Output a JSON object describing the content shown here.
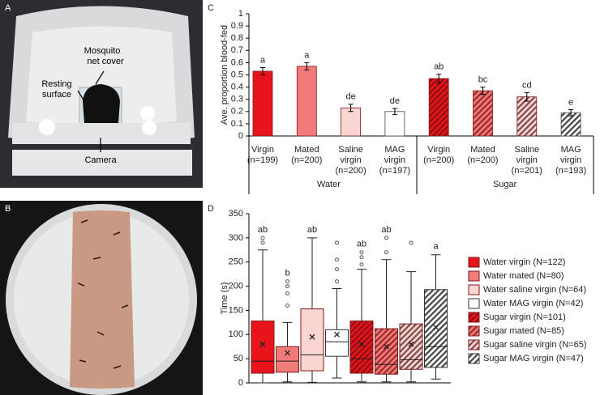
{
  "photo_a": {
    "panel_label": "A",
    "annotations": [
      [
        "Mosquito",
        "net cover"
      ],
      [
        "Resting",
        "surface"
      ],
      [
        "Camera"
      ]
    ]
  },
  "photo_b": {
    "panel_label": "B"
  },
  "chart_data": [
    {
      "type": "bar",
      "panel_label": "C",
      "ylabel": "Ave. proportion blood-fed",
      "ylim": [
        0,
        1
      ],
      "yticks": [
        0,
        0.1,
        0.2,
        0.3,
        0.4,
        0.5,
        0.6,
        0.7,
        0.8,
        0.9,
        1
      ],
      "groups": [
        {
          "name": "Water",
          "hatch": false,
          "categories": [
            [
              "Virgin",
              "(n=199)"
            ],
            [
              "Mated",
              "(n=200)"
            ],
            [
              "Saline",
              "virgin",
              "(n=200)"
            ],
            [
              "MAG",
              "virgin",
              "(n=197)"
            ]
          ],
          "values": [
            0.53,
            0.57,
            0.23,
            0.2
          ],
          "errors": [
            0.03,
            0.03,
            0.03,
            0.025
          ],
          "letters": [
            "a",
            "a",
            "de",
            "de"
          ],
          "colors": [
            "#e8141c",
            "#f07b78",
            "#fbd5d2",
            "#ffffff"
          ]
        },
        {
          "name": "Sugar",
          "hatch": true,
          "categories": [
            [
              "Virgin",
              "(n=200)"
            ],
            [
              "Mated",
              "(n=200)"
            ],
            [
              "Saline",
              "virgin",
              "(n=201)"
            ],
            [
              "MAG",
              "virgin",
              "(n=193)"
            ]
          ],
          "values": [
            0.47,
            0.37,
            0.32,
            0.19
          ],
          "errors": [
            0.035,
            0.03,
            0.035,
            0.025
          ],
          "letters": [
            "ab",
            "bc",
            "cd",
            "e"
          ],
          "colors": [
            "#e8141c",
            "#f07b78",
            "#fbd5d2",
            "#ffffff"
          ],
          "hatch_colors": [
            "#8b0f14",
            "#9b2a2a",
            "#7a4a4a",
            "#444444"
          ]
        }
      ]
    },
    {
      "type": "box",
      "panel_label": "D",
      "ylabel": "Time (s)",
      "ylim": [
        0,
        350
      ],
      "yticks": [
        0,
        50,
        100,
        150,
        200,
        250,
        300,
        350
      ],
      "series": [
        {
          "name": "Water virgin (N=122)",
          "color": "#e8141c",
          "hatch": false,
          "min": 0,
          "q1": 20,
          "median": 45,
          "q3": 128,
          "max": 275,
          "mean": 80,
          "outliers": [
            290,
            300
          ],
          "letter": "ab"
        },
        {
          "name": "Water mated (N=80)",
          "color": "#f07b78",
          "hatch": false,
          "min": 2,
          "q1": 22,
          "median": 45,
          "q3": 75,
          "max": 125,
          "mean": 62,
          "outliers": [
            160,
            185,
            200,
            210
          ],
          "letter": "b"
        },
        {
          "name": "Water saline virgin (N=64)",
          "color": "#fbd5d2",
          "hatch": false,
          "min": 1,
          "q1": 25,
          "median": 58,
          "q3": 153,
          "max": 300,
          "mean": 95,
          "outliers": [],
          "letter": "ab"
        },
        {
          "name": "Water MAG virgin (N=42)",
          "color": "#ffffff",
          "hatch": false,
          "min": 10,
          "q1": 55,
          "median": 85,
          "q3": 110,
          "max": 195,
          "mean": 100,
          "outliers": [
            210,
            235,
            255,
            290
          ],
          "letter": null
        },
        {
          "name": "Sugar virgin (N=101)",
          "color": "#e8141c",
          "hatch": true,
          "hatch_color": "#8b0f14",
          "min": 2,
          "q1": 20,
          "median": 50,
          "q3": 128,
          "max": 235,
          "mean": 80,
          "outliers": [
            245,
            260,
            270
          ],
          "letter": "ab"
        },
        {
          "name": "Sugar mated (N=85)",
          "color": "#f07b78",
          "hatch": true,
          "hatch_color": "#9b2a2a",
          "min": 2,
          "q1": 18,
          "median": 38,
          "q3": 112,
          "max": 255,
          "mean": 75,
          "outliers": [
            270,
            300
          ],
          "letter": "ab"
        },
        {
          "name": "Sugar saline virgin (N=65)",
          "color": "#fbd5d2",
          "hatch": true,
          "hatch_color": "#7a4a4a",
          "min": 2,
          "q1": 28,
          "median": 48,
          "q3": 122,
          "max": 230,
          "mean": 80,
          "outliers": [
            290
          ],
          "letter": null
        },
        {
          "name": "Sugar MAG virgin (N=47)",
          "color": "#ffffff",
          "hatch": true,
          "hatch_color": "#444444",
          "min": 8,
          "q1": 32,
          "median": 75,
          "q3": 193,
          "max": 265,
          "mean": 115,
          "outliers": [],
          "letter": "a"
        }
      ]
    }
  ]
}
